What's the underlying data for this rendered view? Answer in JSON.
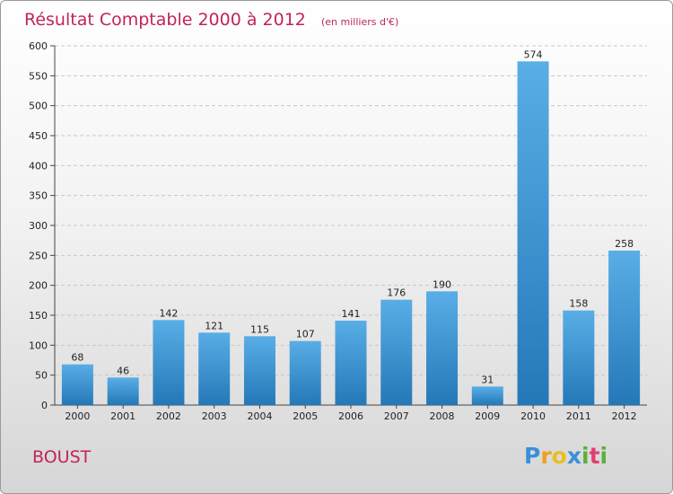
{
  "chart_data": {
    "type": "bar",
    "title": "Résultat Comptable 2000 à 2012",
    "subtitle": "(en milliers d'€)",
    "categories": [
      "2000",
      "2001",
      "2002",
      "2003",
      "2004",
      "2005",
      "2006",
      "2007",
      "2008",
      "2009",
      "2010",
      "2011",
      "2012"
    ],
    "values": [
      68,
      46,
      142,
      121,
      115,
      107,
      141,
      176,
      190,
      31,
      574,
      158,
      258
    ],
    "ylim": [
      0,
      600
    ],
    "yticks": [
      0,
      50,
      100,
      150,
      200,
      250,
      300,
      350,
      400,
      450,
      500,
      550,
      600
    ],
    "xlabel": "",
    "ylabel": "",
    "grid": true,
    "bar_color_top": "#5aaee6",
    "bar_color_bottom": "#2478b8"
  },
  "place_name": "BOUST",
  "brand": {
    "letters": [
      "P",
      "r",
      "o",
      "x",
      "i",
      "t",
      "i"
    ],
    "colors": [
      "#3a8fd8",
      "#f0a020",
      "#e8c020",
      "#3a8fd8",
      "#58b040",
      "#e04070",
      "#58b040"
    ]
  }
}
